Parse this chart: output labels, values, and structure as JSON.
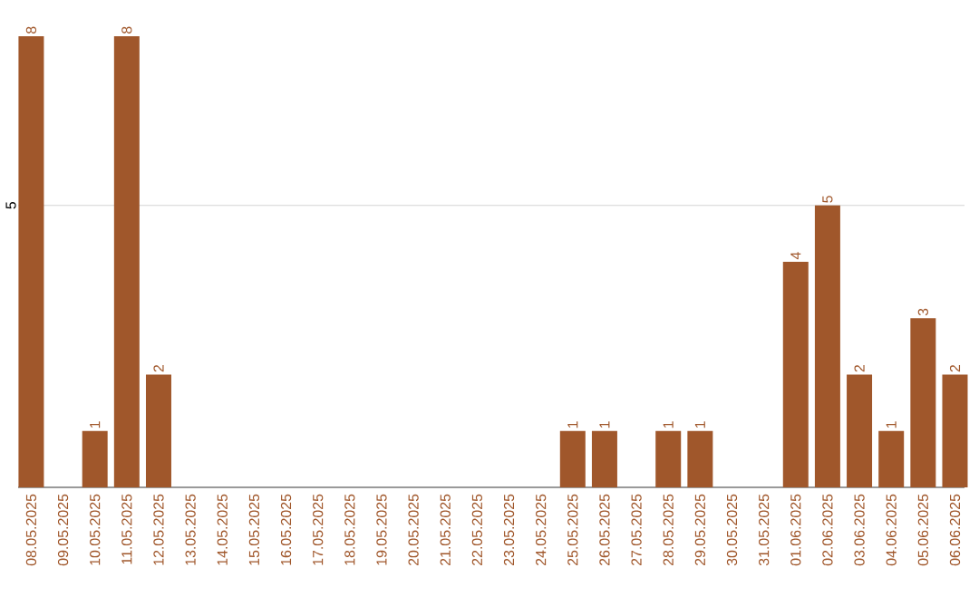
{
  "chart_data": {
    "type": "bar",
    "color": "#a0572b",
    "categories": [
      "08.05.2025",
      "09.05.2025",
      "10.05.2025",
      "11.05.2025",
      "12.05.2025",
      "13.05.2025",
      "14.05.2025",
      "15.05.2025",
      "16.05.2025",
      "17.05.2025",
      "18.05.2025",
      "19.05.2025",
      "20.05.2025",
      "21.05.2025",
      "22.05.2025",
      "23.05.2025",
      "24.05.2025",
      "25.05.2025",
      "26.05.2025",
      "27.05.2025",
      "28.05.2025",
      "29.05.2025",
      "30.05.2025",
      "31.05.2025",
      "01.06.2025",
      "02.06.2025",
      "03.06.2025",
      "04.06.2025",
      "05.06.2025",
      "06.06.2025"
    ],
    "values": [
      8,
      0,
      1,
      8,
      2,
      0,
      0,
      0,
      0,
      0,
      0,
      0,
      0,
      0,
      0,
      0,
      0,
      1,
      1,
      0,
      1,
      1,
      0,
      0,
      4,
      5,
      2,
      1,
      3,
      2
    ],
    "value_labels": [
      "8",
      null,
      "1",
      "8",
      "2",
      null,
      null,
      null,
      null,
      null,
      null,
      null,
      null,
      null,
      null,
      null,
      null,
      "1",
      "1",
      null,
      "1",
      "1",
      null,
      null,
      "4",
      "5",
      "2",
      "1",
      "3",
      "2"
    ],
    "ylim": [
      0,
      8
    ],
    "ref_lines": [
      {
        "axis": "y",
        "value": 5,
        "label": "5",
        "color": "#c8c8c8"
      }
    ]
  }
}
